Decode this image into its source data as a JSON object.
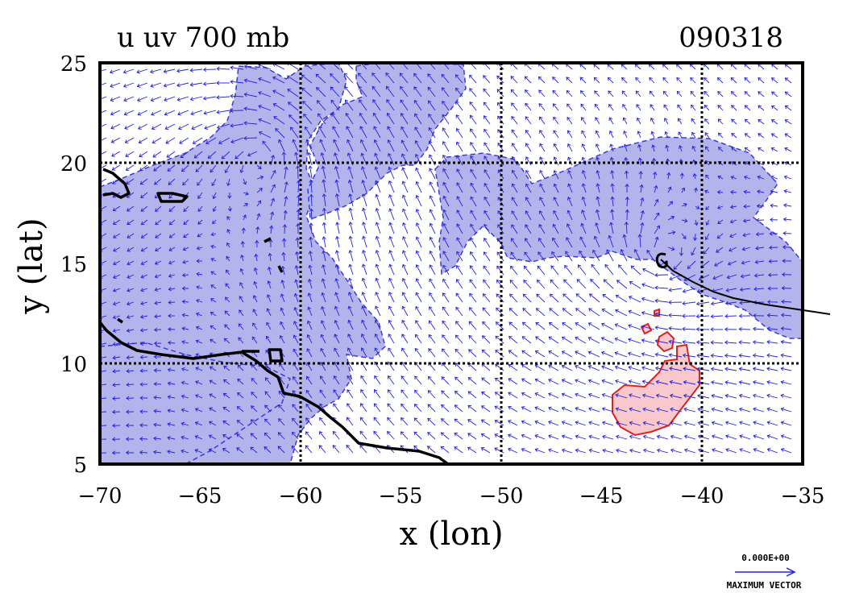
{
  "title": "u uv 700 mb",
  "date_code": "090318",
  "xlabel": "x (lon)",
  "ylabel": "y (lat)",
  "x_ticks": [
    "−70",
    "−65",
    "−60",
    "−55",
    "−50",
    "−45",
    "−40",
    "−35"
  ],
  "y_ticks": [
    "25",
    "20",
    "15",
    "10",
    "5"
  ],
  "map": {
    "lon_range": [
      -70,
      -35
    ],
    "lat_range": [
      5,
      25
    ],
    "grid_lines_lon": [
      -60,
      -50,
      -40
    ],
    "grid_lines_lat": [
      10,
      20
    ],
    "shading": {
      "negative_u_color": "#b4b4ec",
      "negative_u_contour": "#3a3ad8",
      "positive_u_color": "#f8c8cc",
      "positive_u_contour": "#e02020"
    },
    "vector_color": "#2020e0",
    "coastline_color": "#000000"
  },
  "reference_vector": {
    "value_label": "0.000E+00",
    "caption": "MAXIMUM VECTOR"
  }
}
